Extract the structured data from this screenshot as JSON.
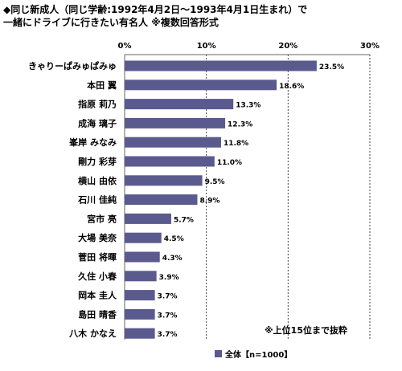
{
  "header": {
    "title": "◆同じ新成人（同じ学齢:1992年4月2日～1993年4月1日生まれ）で\n一緒にドライブに行きたい有名人 ※複数回答形式"
  },
  "chart_data": {
    "type": "bar",
    "orientation": "horizontal",
    "title": "◆同じ新成人（同じ学齢:1992年4月2日～1993年4月1日生まれ）で\n一緒にドライブに行きたい有名人 ※複数回答形式",
    "categories": [
      "きゃりーぱみゅぱみゅ",
      "本田 翼",
      "指原 莉乃",
      "成海 璃子",
      "峯岸 みなみ",
      "剛力 彩芽",
      "横山 由依",
      "石川 佳純",
      "宮市 亮",
      "大場 美奈",
      "菅田 将暉",
      "久住 小春",
      "岡本 圭人",
      "島田 晴香",
      "八木 かなえ"
    ],
    "series": [
      {
        "name": "全体【n=1000】",
        "values": [
          23.5,
          18.6,
          13.3,
          12.3,
          11.8,
          11.0,
          9.5,
          8.9,
          5.7,
          4.5,
          4.3,
          3.9,
          3.7,
          3.7,
          3.7
        ],
        "labels": [
          "23.5%",
          "18.6%",
          "13.3%",
          "12.3%",
          "11.8%",
          "11.0%",
          "9.5%",
          "8.9%",
          "5.7%",
          "4.5%",
          "4.3%",
          "3.9%",
          "3.7%",
          "3.7%",
          "3.7%"
        ],
        "color": "#5b5a8f"
      }
    ],
    "xlim": [
      0,
      30
    ],
    "xticks": [
      0,
      10,
      20,
      30
    ],
    "xtick_labels": [
      "0%",
      "10%",
      "20%",
      "30%"
    ],
    "grid": true,
    "legend_position": "bottom-center",
    "annotation": "※上位15位まで抜粋"
  }
}
